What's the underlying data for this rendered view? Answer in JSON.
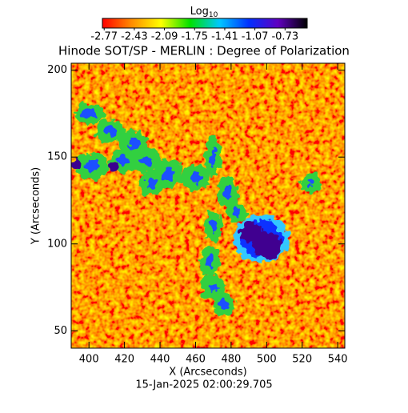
{
  "chart_data": {
    "type": "heatmap",
    "title": "Hinode SOT/SP - MERLIN : Degree of Polarization",
    "xlabel": "X (Arcseconds)",
    "ylabel": "Y (Arcseconds)",
    "xlim": [
      390,
      544
    ],
    "ylim": [
      40,
      204
    ],
    "xticks": [
      400,
      420,
      440,
      460,
      480,
      500,
      520,
      540
    ],
    "yticks": [
      50,
      100,
      150,
      200
    ],
    "colorbar": {
      "label": "Log",
      "label_subscript": "10",
      "lim": [
        -2.79,
        -0.48
      ],
      "ticks": [
        -2.77,
        -2.43,
        -2.09,
        -1.75,
        -1.41,
        -1.07,
        -0.73
      ],
      "colors": [
        "#ff0000",
        "#ff8c00",
        "#ffff00",
        "#00e000",
        "#00c8ff",
        "#0030ff",
        "#6000c0",
        "#000000"
      ]
    },
    "timestamp": "15-Jan-2025 02:00:29.705"
  }
}
